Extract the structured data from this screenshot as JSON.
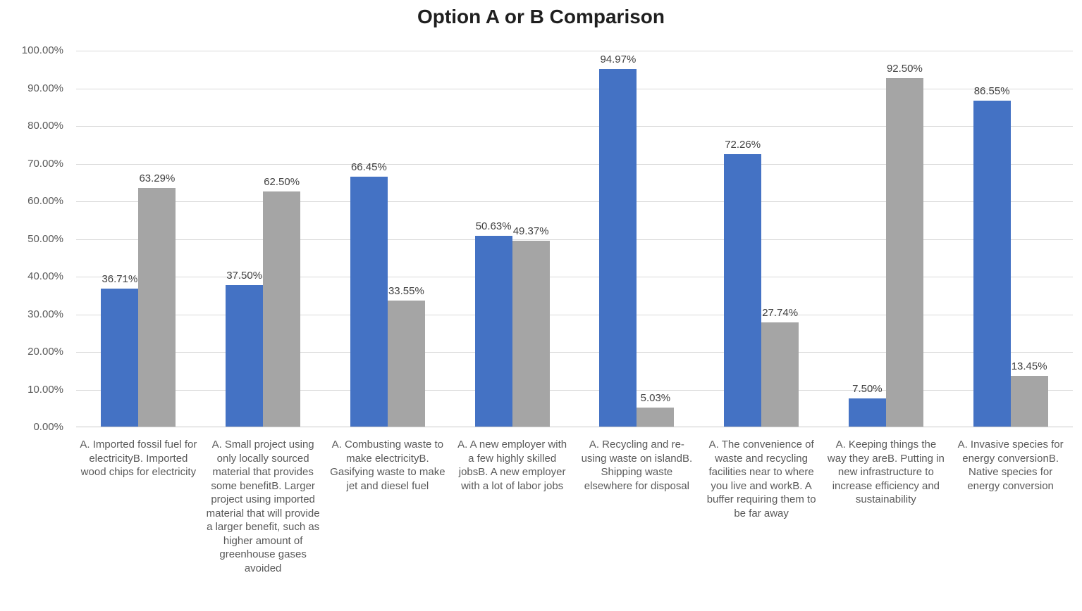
{
  "chart_data": {
    "type": "bar",
    "title": "Option A or B Comparison",
    "xlabel": "",
    "ylabel": "",
    "grid": true,
    "legend": "none",
    "y_axis": {
      "min": 0,
      "max": 100,
      "step": 10,
      "ticks_top_to_bottom": [
        "100.00%",
        "90.00%",
        "80.00%",
        "70.00%",
        "60.00%",
        "50.00%",
        "40.00%",
        "30.00%",
        "20.00%",
        "10.00%",
        "0.00%"
      ]
    },
    "categories": [
      "A. Imported fossil fuel for electricityB. Imported wood chips for electricity",
      "A. Small project using only locally sourced material that provides some benefitB. Larger project using imported material that will provide a larger benefit, such as higher amount of greenhouse gases avoided",
      "A. Combusting waste to make electricityB. Gasifying waste to make jet and diesel fuel",
      "A. A new employer with a few highly skilled jobsB. A new employer with a lot of labor jobs",
      "A. Recycling and re-using waste on islandB. Shipping waste elsewhere for disposal",
      "A. The convenience of waste and recycling facilities near to where you live and workB. A buffer requiring them to be far away",
      "A. Keeping things the way they areB. Putting in new infrastructure to increase efficiency and sustainability",
      "A. Invasive species for energy conversionB. Native species for energy conversion"
    ],
    "series": [
      {
        "name": "A",
        "color": "#4472C4",
        "values": [
          36.71,
          37.5,
          66.45,
          50.63,
          94.97,
          72.26,
          7.5,
          86.55
        ],
        "labels": [
          "36.71%",
          "37.50%",
          "66.45%",
          "50.63%",
          "94.97%",
          "72.26%",
          "7.50%",
          "86.55%"
        ]
      },
      {
        "name": "B",
        "color": "#A5A5A5",
        "values": [
          63.29,
          62.5,
          33.55,
          49.37,
          5.03,
          27.74,
          92.5,
          13.45
        ],
        "labels": [
          "63.29%",
          "62.50%",
          "33.55%",
          "49.37%",
          "5.03%",
          "27.74%",
          "92.50%",
          "13.45%"
        ]
      }
    ],
    "colors": {
      "bar_a": "#4472C4",
      "bar_b": "#A5A5A5",
      "gridline": "#D9D9D9",
      "axis_line": "#C9C9C9",
      "axis_text": "#595959",
      "data_label_text": "#404040",
      "title_text": "#1F1F1F",
      "background": "#FFFFFF"
    }
  }
}
